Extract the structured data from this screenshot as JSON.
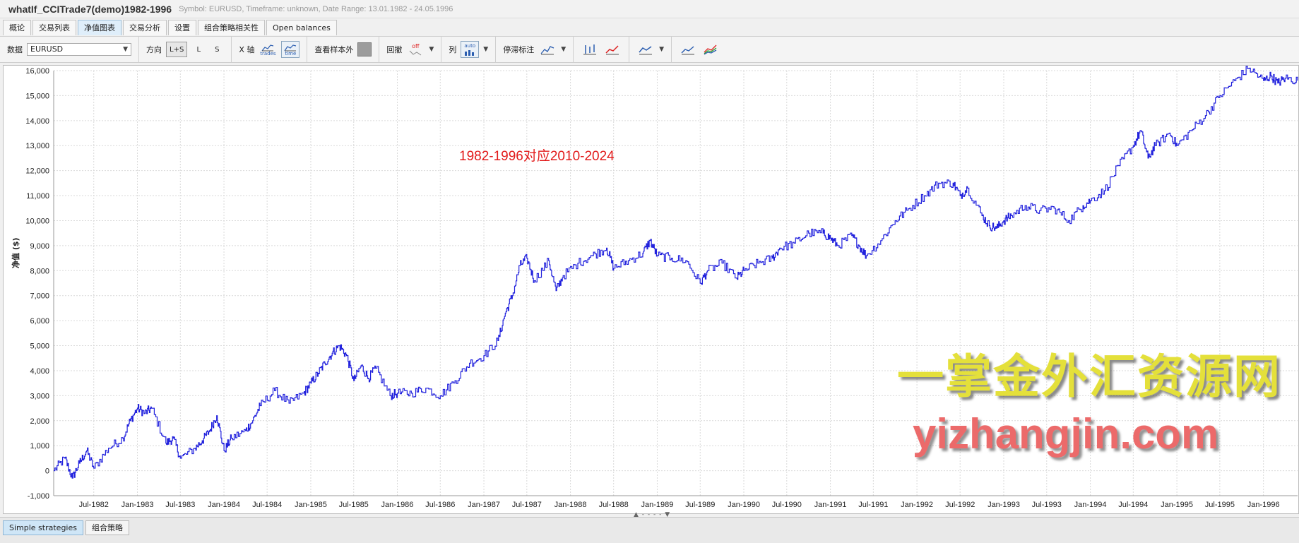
{
  "window": {
    "title": "whatIf_CCITrade7(demo)1982-1996",
    "subtitle": "Symbol: EURUSD, Timeframe: unknown, Date Range: 13.01.1982 - 24.05.1996"
  },
  "tabs": [
    {
      "label": "概论"
    },
    {
      "label": "交易列表"
    },
    {
      "label": "净值图表",
      "active": true
    },
    {
      "label": "交易分析"
    },
    {
      "label": "设置"
    },
    {
      "label": "组合策略相关性"
    },
    {
      "label": "Open balances"
    }
  ],
  "toolbar": {
    "data_label": "数据",
    "data_value": "EURUSD",
    "direction_label": "方向",
    "direction_options": [
      "L+S",
      "L",
      "S"
    ],
    "xaxis_label": "X 轴",
    "xaxis_trades_caption": "trades",
    "xaxis_time_caption": "time",
    "oos_label": "查看样本外",
    "drawdown_label": "回撤",
    "drawdown_state": "off",
    "column_label": "列",
    "column_state": "auto",
    "stop_label": "停滞标注"
  },
  "chart_data": {
    "type": "line",
    "ylabel": "净值 ($)",
    "ylim": [
      -1000,
      16000
    ],
    "yticks": [
      "-1,000",
      "0",
      "1,000",
      "2,000",
      "3,000",
      "4,000",
      "5,000",
      "6,000",
      "7,000",
      "8,000",
      "9,000",
      "10,000",
      "11,000",
      "12,000",
      "13,000",
      "14,000",
      "15,000",
      "16,000"
    ],
    "xlim": [
      "1982-01-13",
      "1996-05-24"
    ],
    "xticks": [
      "Jul-1982",
      "Jan-1983",
      "Jul-1983",
      "Jan-1984",
      "Jul-1984",
      "Jan-1985",
      "Jul-1985",
      "Jan-1986",
      "Jul-1986",
      "Jan-1987",
      "Jul-1987",
      "Jan-1988",
      "Jul-1988",
      "Jan-1989",
      "Jul-1989",
      "Jan-1990",
      "Jul-1990",
      "Jan-1991",
      "Jul-1991",
      "Jan-1992",
      "Jul-1992",
      "Jan-1993",
      "Jul-1993",
      "Jan-1994",
      "Jul-1994",
      "Jan-1995",
      "Jul-1995",
      "Jan-1996"
    ],
    "grid": true,
    "series": [
      {
        "color": "#2222dd",
        "x": [
          "1982-01-13",
          "1982-03",
          "1982-04",
          "1982-05",
          "1982-06",
          "1982-07",
          "1982-09",
          "1982-11",
          "1982-12",
          "1983-01",
          "1983-02",
          "1983-03",
          "1983-05",
          "1983-06",
          "1983-07",
          "1983-09",
          "1983-10",
          "1983-11",
          "1983-12",
          "1984-01",
          "1984-02",
          "1984-04",
          "1984-05",
          "1984-06",
          "1984-08",
          "1984-10",
          "1984-12",
          "1985-01",
          "1985-02",
          "1985-03",
          "1985-04",
          "1985-05",
          "1985-06",
          "1985-07",
          "1985-08",
          "1985-09",
          "1985-10",
          "1985-12",
          "1986-01",
          "1986-03",
          "1986-05",
          "1986-07",
          "1986-09",
          "1986-11",
          "1987-01",
          "1987-03",
          "1987-04",
          "1987-05",
          "1987-06",
          "1987-07",
          "1987-08",
          "1987-10",
          "1987-11",
          "1987-12",
          "1988-02",
          "1988-04",
          "1988-06",
          "1988-07",
          "1988-09",
          "1988-11",
          "1988-12",
          "1989-01",
          "1989-03",
          "1989-05",
          "1989-07",
          "1989-08",
          "1989-10",
          "1989-12",
          "1990-01",
          "1990-03",
          "1990-05",
          "1990-06",
          "1990-08",
          "1990-10",
          "1990-12",
          "1991-01",
          "1991-02",
          "1991-04",
          "1991-05",
          "1991-06",
          "1991-08",
          "1991-10",
          "1991-12",
          "1992-02",
          "1992-04",
          "1992-06",
          "1992-07",
          "1992-08",
          "1992-10",
          "1992-11",
          "1992-12",
          "1993-01",
          "1993-02",
          "1993-04",
          "1993-06",
          "1993-08",
          "1993-10",
          "1993-12",
          "1994-01",
          "1994-03",
          "1994-05",
          "1994-07",
          "1994-08",
          "1994-09",
          "1994-10",
          "1994-12",
          "1995-01",
          "1995-03",
          "1995-05",
          "1995-07",
          "1995-09",
          "1995-11",
          "1996-01",
          "1996-02",
          "1996-03",
          "1996-04",
          "1996-05-24"
        ],
        "y": [
          0,
          500,
          -300,
          300,
          800,
          100,
          900,
          1300,
          2000,
          2500,
          2300,
          2500,
          1100,
          1300,
          500,
          900,
          1200,
          1600,
          2200,
          800,
          1300,
          1600,
          2000,
          2600,
          3200,
          2700,
          3100,
          3500,
          3900,
          4300,
          4700,
          5000,
          4600,
          3600,
          4200,
          3700,
          4100,
          3000,
          3100,
          3100,
          3300,
          3000,
          3600,
          4300,
          4600,
          5200,
          6300,
          7000,
          8200,
          8500,
          7600,
          8400,
          7200,
          7800,
          8300,
          8600,
          8900,
          8100,
          8400,
          8700,
          9200,
          8600,
          8500,
          8400,
          7500,
          8000,
          8300,
          7700,
          8000,
          8300,
          8500,
          8900,
          9100,
          9500,
          9500,
          9300,
          9000,
          9400,
          9000,
          8600,
          9200,
          10000,
          10500,
          11000,
          11500,
          11500,
          11000,
          11300,
          10200,
          9800,
          9700,
          10000,
          10200,
          10600,
          10400,
          10500,
          10000,
          10600,
          10800,
          11200,
          12200,
          13000,
          13600,
          12500,
          13000,
          13500,
          13000,
          13600,
          14200,
          15000,
          15600,
          16100,
          15600,
          15800,
          15500,
          15700,
          15600
        ]
      }
    ]
  },
  "annotation": "1982-1996对应2010-2024",
  "watermark": {
    "line1": "一掌金外汇资源网",
    "line2": "yizhangjin.com"
  },
  "bottom_tabs": [
    {
      "label": "Simple strategies",
      "active": true
    },
    {
      "label": "组合策略"
    }
  ]
}
